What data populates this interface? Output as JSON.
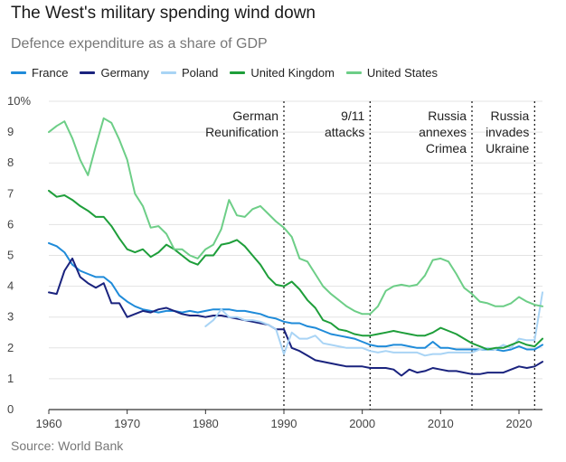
{
  "header": {
    "title": "The West's military spending wind down",
    "subtitle": "Defence expenditure as a share of GDP"
  },
  "footer": {
    "source": "Source: World Bank"
  },
  "chart_data": {
    "type": "line",
    "title": "The West's military spending wind down",
    "subtitle": "Defence expenditure as a share of GDP",
    "xlabel": "",
    "ylabel": "",
    "xlim": [
      1960,
      2023
    ],
    "ylim": [
      0,
      10
    ],
    "grid": true,
    "legend_position": "top-left",
    "x_ticks": [
      1960,
      1970,
      1980,
      1990,
      2000,
      2010,
      2020
    ],
    "y_ticks": [
      0,
      1,
      2,
      3,
      4,
      5,
      6,
      7,
      8,
      9,
      10
    ],
    "y_tick_labels": [
      "0",
      "1",
      "2",
      "3",
      "4",
      "5",
      "6",
      "7",
      "8",
      "9",
      "10%"
    ],
    "series": [
      {
        "name": "France",
        "color": "#1f8bd9",
        "x_start": 1960,
        "values": [
          5.4,
          5.3,
          5.1,
          4.7,
          4.5,
          4.4,
          4.3,
          4.3,
          4.1,
          3.7,
          3.5,
          3.35,
          3.25,
          3.2,
          3.15,
          3.2,
          3.2,
          3.15,
          3.2,
          3.15,
          3.2,
          3.25,
          3.25,
          3.25,
          3.2,
          3.2,
          3.15,
          3.1,
          3.0,
          2.95,
          2.85,
          2.8,
          2.8,
          2.7,
          2.65,
          2.55,
          2.45,
          2.4,
          2.35,
          2.3,
          2.2,
          2.1,
          2.05,
          2.05,
          2.1,
          2.1,
          2.05,
          2.0,
          2.0,
          2.2,
          2.0,
          2.0,
          1.95,
          1.95,
          1.95,
          1.95,
          1.95,
          1.95,
          1.9,
          1.95,
          2.05,
          1.95,
          1.95,
          2.1
        ]
      },
      {
        "name": "Germany",
        "color": "#1a237e",
        "x_start": 1960,
        "values": [
          3.8,
          3.75,
          4.5,
          4.9,
          4.3,
          4.1,
          3.95,
          4.1,
          3.45,
          3.45,
          3.0,
          3.1,
          3.2,
          3.15,
          3.25,
          3.3,
          3.2,
          3.1,
          3.05,
          3.05,
          3.0,
          3.05,
          3.05,
          3.0,
          2.95,
          2.9,
          2.85,
          2.8,
          2.75,
          2.6,
          2.6,
          2.0,
          1.9,
          1.75,
          1.6,
          1.55,
          1.5,
          1.45,
          1.4,
          1.4,
          1.4,
          1.35,
          1.35,
          1.35,
          1.3,
          1.1,
          1.3,
          1.2,
          1.25,
          1.35,
          1.3,
          1.25,
          1.25,
          1.2,
          1.15,
          1.15,
          1.2,
          1.2,
          1.2,
          1.3,
          1.4,
          1.35,
          1.4,
          1.55
        ]
      },
      {
        "name": "Poland",
        "color": "#a9d4f5",
        "x_start": 1980,
        "values": [
          2.7,
          2.9,
          3.25,
          3.0,
          3.0,
          2.9,
          2.9,
          2.85,
          2.75,
          2.6,
          1.8,
          2.5,
          2.3,
          2.3,
          2.4,
          2.15,
          2.1,
          2.05,
          2.0,
          2.0,
          2.0,
          1.9,
          1.85,
          1.9,
          1.85,
          1.85,
          1.85,
          1.85,
          1.75,
          1.8,
          1.8,
          1.85,
          1.85,
          1.85,
          1.85,
          1.95,
          2.0,
          1.95,
          2.1,
          2.0,
          2.3,
          2.25,
          2.25,
          3.8
        ]
      },
      {
        "name": "United Kingdom",
        "color": "#1e9e3a",
        "x_start": 1960,
        "values": [
          7.1,
          6.9,
          6.95,
          6.8,
          6.6,
          6.45,
          6.25,
          6.25,
          5.95,
          5.55,
          5.2,
          5.1,
          5.2,
          4.95,
          5.1,
          5.35,
          5.2,
          5.0,
          4.8,
          4.7,
          5.0,
          5.0,
          5.35,
          5.4,
          5.5,
          5.3,
          5.0,
          4.7,
          4.3,
          4.05,
          4.0,
          4.15,
          3.9,
          3.55,
          3.3,
          2.9,
          2.8,
          2.6,
          2.55,
          2.45,
          2.4,
          2.4,
          2.45,
          2.5,
          2.55,
          2.5,
          2.45,
          2.4,
          2.4,
          2.5,
          2.65,
          2.55,
          2.45,
          2.3,
          2.15,
          2.05,
          1.95,
          2.0,
          2.0,
          2.1,
          2.2,
          2.1,
          2.05,
          2.3
        ]
      },
      {
        "name": "United States",
        "color": "#6dce87",
        "x_start": 1960,
        "values": [
          9.0,
          9.2,
          9.35,
          8.8,
          8.1,
          7.6,
          8.55,
          9.45,
          9.3,
          8.75,
          8.1,
          7.0,
          6.6,
          5.9,
          5.95,
          5.7,
          5.2,
          5.2,
          5.0,
          4.9,
          5.2,
          5.35,
          5.85,
          6.8,
          6.3,
          6.25,
          6.5,
          6.6,
          6.35,
          6.1,
          5.9,
          5.6,
          4.9,
          4.8,
          4.4,
          4.0,
          3.75,
          3.55,
          3.35,
          3.2,
          3.1,
          3.1,
          3.35,
          3.85,
          4.0,
          4.05,
          4.0,
          4.05,
          4.35,
          4.85,
          4.9,
          4.8,
          4.4,
          3.95,
          3.75,
          3.5,
          3.45,
          3.35,
          3.35,
          3.45,
          3.65,
          3.5,
          3.4,
          3.35
        ]
      }
    ],
    "events": [
      {
        "year": 1990,
        "label_lines": [
          "German",
          "Reunification"
        ],
        "anchor": "end"
      },
      {
        "year": 2001,
        "label_lines": [
          "9/11",
          "attacks"
        ],
        "anchor": "end"
      },
      {
        "year": 2014,
        "label_lines": [
          "Russia",
          "annexes",
          "Crimea"
        ],
        "anchor": "end"
      },
      {
        "year": 2022,
        "label_lines": [
          "Russia",
          "invades",
          "Ukraine"
        ],
        "anchor": "end"
      }
    ]
  }
}
